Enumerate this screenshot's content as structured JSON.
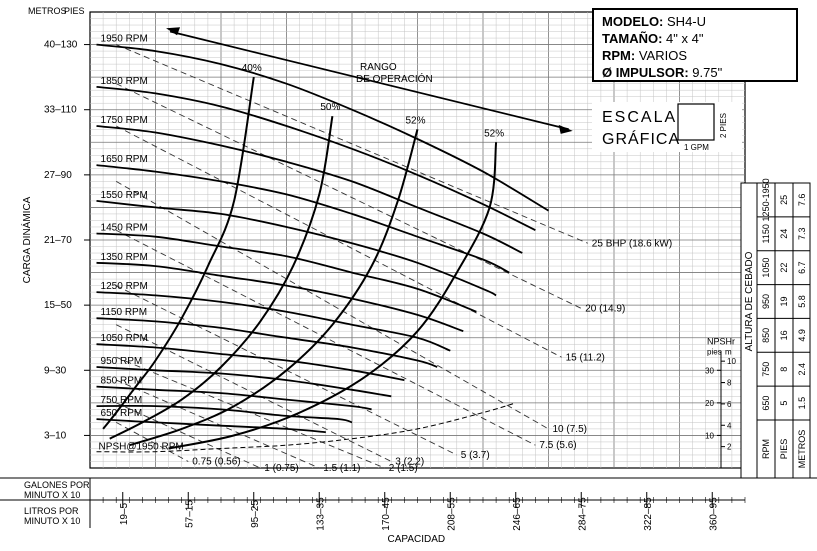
{
  "info_box": {
    "model_label": "MODELO:",
    "model": "SH4-U",
    "size_label": "TAMAÑO:",
    "size": "4\" x 4\"",
    "rpm_label": "RPM:",
    "rpm": "VARIOS",
    "impeller_label": "Ø IMPULSOR:",
    "impeller": "9.75\""
  },
  "chart_data": {
    "type": "line",
    "title": "",
    "y_axis_label": "CARGA DINÁMICA",
    "y_units_header": [
      "METROS",
      "PIES"
    ],
    "y_ticks": [
      {
        "m": 3,
        "ft": 10
      },
      {
        "m": 9,
        "ft": 30
      },
      {
        "m": 15,
        "ft": 50
      },
      {
        "m": 21,
        "ft": 70
      },
      {
        "m": 27,
        "ft": 90
      },
      {
        "m": 33,
        "ft": 110
      },
      {
        "m": 40,
        "ft": 130
      }
    ],
    "ylim_ft": [
      0,
      140
    ],
    "x_axis_label": "CAPACIDAD",
    "x_gpm_label": "GALONES POR MINUTO X 10",
    "x_lpm_label": "LITROS POR MINUTO X 10",
    "x_ticks": [
      {
        "gpm": 5,
        "lpm": "19–5"
      },
      {
        "gpm": 15,
        "lpm": "57–15"
      },
      {
        "gpm": 25,
        "lpm": "95–25"
      },
      {
        "gpm": 35,
        "lpm": "133–35"
      },
      {
        "gpm": 45,
        "lpm": "170–45"
      },
      {
        "gpm": 55,
        "lpm": "208–55"
      },
      {
        "gpm": 65,
        "lpm": "246–65"
      },
      {
        "gpm": 75,
        "lpm": "284–75"
      },
      {
        "gpm": 85,
        "lpm": "322–85"
      },
      {
        "gpm": 95,
        "lpm": "360–95"
      }
    ],
    "xlim_gpm": [
      0,
      100
    ],
    "rpm_curves": [
      {
        "name": "1950 RPM",
        "x": [
          1,
          10,
          20,
          30,
          40,
          50,
          60,
          70
        ],
        "y": [
          130,
          128,
          124,
          118,
          110,
          101,
          91,
          79
        ]
      },
      {
        "name": "1850 RPM",
        "x": [
          1,
          10,
          20,
          30,
          40,
          50,
          60,
          68
        ],
        "y": [
          117,
          115,
          111,
          105,
          98,
          90,
          81,
          73
        ]
      },
      {
        "name": "1750 RPM",
        "x": [
          1,
          10,
          20,
          30,
          40,
          50,
          60,
          66
        ],
        "y": [
          105,
          103,
          99,
          94,
          88,
          80,
          72,
          66
        ]
      },
      {
        "name": "1650 RPM",
        "x": [
          1,
          10,
          20,
          30,
          40,
          50,
          60,
          64
        ],
        "y": [
          93,
          91,
          88,
          84,
          78,
          71,
          64,
          60
        ]
      },
      {
        "name": "1550 RPM",
        "x": [
          1,
          10,
          20,
          30,
          40,
          50,
          60,
          62
        ],
        "y": [
          82,
          80,
          78,
          74,
          69,
          63,
          55,
          53
        ]
      },
      {
        "name": "1450 RPM",
        "x": [
          1,
          10,
          20,
          30,
          40,
          50,
          59
        ],
        "y": [
          72,
          71,
          68,
          65,
          60,
          55,
          48
        ]
      },
      {
        "name": "1350 RPM",
        "x": [
          1,
          10,
          20,
          30,
          40,
          50,
          57
        ],
        "y": [
          63,
          62,
          59,
          56,
          52,
          47,
          42
        ]
      },
      {
        "name": "1250 RPM",
        "x": [
          1,
          10,
          20,
          30,
          40,
          50,
          55
        ],
        "y": [
          54,
          53,
          51,
          48,
          44,
          40,
          36
        ]
      },
      {
        "name": "1150 RPM",
        "x": [
          1,
          10,
          20,
          30,
          40,
          50,
          53
        ],
        "y": [
          46,
          45,
          43,
          40,
          37,
          33,
          31
        ]
      },
      {
        "name": "1050 RPM",
        "x": [
          1,
          10,
          20,
          30,
          40,
          48
        ],
        "y": [
          38,
          37,
          35,
          33,
          30,
          27
        ]
      },
      {
        "name": "950 RPM",
        "x": [
          1,
          10,
          20,
          30,
          40,
          46
        ],
        "y": [
          31,
          30,
          29,
          27,
          24,
          22
        ]
      },
      {
        "name": "850 RPM",
        "x": [
          1,
          10,
          20,
          30,
          40,
          43
        ],
        "y": [
          25,
          24,
          23,
          21,
          19,
          18
        ]
      },
      {
        "name": "750 RPM",
        "x": [
          1,
          10,
          20,
          30,
          38,
          40
        ],
        "y": [
          19,
          19,
          18,
          16,
          15,
          14
        ]
      },
      {
        "name": "650 RPM",
        "x": [
          1,
          10,
          20,
          30,
          36
        ],
        "y": [
          15,
          14,
          13,
          12,
          11
        ]
      }
    ],
    "efficiency_curves": [
      {
        "name": "40%",
        "x": [
          2,
          4,
          7,
          10,
          14,
          18,
          22,
          25
        ],
        "y": [
          12,
          17,
          25,
          33,
          46,
          62,
          82,
          120
        ]
      },
      {
        "name": "50%",
        "x": [
          3,
          8,
          14,
          20,
          26,
          31,
          35,
          37
        ],
        "y": [
          9,
          14,
          21,
          31,
          45,
          62,
          84,
          108
        ]
      },
      {
        "name": "52%",
        "x": [
          6,
          14,
          22,
          30,
          37,
          43,
          47,
          50
        ],
        "y": [
          7,
          12,
          19,
          30,
          44,
          62,
          82,
          104
        ]
      },
      {
        "name": "52%",
        "x": [
          12,
          22,
          32,
          42,
          50,
          56,
          61,
          62
        ],
        "y": [
          6,
          10,
          17,
          28,
          42,
          60,
          80,
          100
        ]
      }
    ],
    "bhp_lines": [
      {
        "name": "25 BHP (18.6 kW)",
        "x": [
          4,
          76
        ],
        "y": [
          130,
          69
        ]
      },
      {
        "name": "20 (14.9)",
        "x": [
          4,
          75
        ],
        "y": [
          118,
          49
        ]
      },
      {
        "name": "15 (11.2)",
        "x": [
          4,
          72
        ],
        "y": [
          105,
          34
        ]
      },
      {
        "name": "10 (7.5)",
        "x": [
          4,
          70
        ],
        "y": [
          88,
          12
        ]
      },
      {
        "name": "7.5 (5.6)",
        "x": [
          4,
          68
        ],
        "y": [
          73,
          7
        ]
      },
      {
        "name": "5 (3.7)",
        "x": [
          4,
          56
        ],
        "y": [
          56,
          4
        ]
      },
      {
        "name": "3 (2.2)",
        "x": [
          4,
          46
        ],
        "y": [
          44,
          2
        ]
      },
      {
        "name": "2 (1.5)",
        "x": [
          4,
          45
        ],
        "y": [
          34,
          0
        ]
      },
      {
        "name": "1.5 (1.1)",
        "x": [
          4,
          35
        ],
        "y": [
          27,
          0
        ]
      },
      {
        "name": "1 (0.75)",
        "x": [
          4,
          26
        ],
        "y": [
          20,
          0
        ]
      },
      {
        "name": "0.75 (0.56)",
        "x": [
          4,
          15
        ],
        "y": [
          14,
          2
        ]
      }
    ],
    "npsh_curve": {
      "name": "NPSH@1950 RPM",
      "x": [
        1,
        10,
        20,
        30,
        40,
        50,
        60,
        65
      ],
      "y": [
        5,
        5,
        6,
        7,
        9,
        12,
        17,
        20
      ]
    },
    "npsh_axis": {
      "header": "NPSHr",
      "ft_label": "pies",
      "m_label": "m",
      "ft_ticks": [
        10,
        20,
        30
      ],
      "m_ticks": [
        2,
        4,
        6,
        8,
        10
      ]
    },
    "operating_range": {
      "label": "RANGO DE OPERACIÓN",
      "x_min": 11,
      "x_max": 74
    },
    "scale_legend": {
      "text_top": "ESCALA",
      "text_bottom": "GRÁFICA",
      "vertical": "2 PIES",
      "horizontal": "1 GPM"
    },
    "suction_table": {
      "title": "ALTURA DE CEBADO",
      "row_labels": [
        "RPM",
        "PIES",
        "METROS"
      ],
      "columns": [
        {
          "rpm": "650",
          "pies": "5",
          "metros": "1.5"
        },
        {
          "rpm": "750",
          "pies": "8",
          "metros": "2.4"
        },
        {
          "rpm": "850",
          "pies": "16",
          "metros": "4.9"
        },
        {
          "rpm": "950",
          "pies": "19",
          "metros": "5.8"
        },
        {
          "rpm": "1050",
          "pies": "22",
          "metros": "6.7"
        },
        {
          "rpm": "1150",
          "pies": "24",
          "metros": "7.3"
        },
        {
          "rpm": "1250-1950",
          "pies": "25",
          "metros": "7.6"
        }
      ]
    }
  }
}
